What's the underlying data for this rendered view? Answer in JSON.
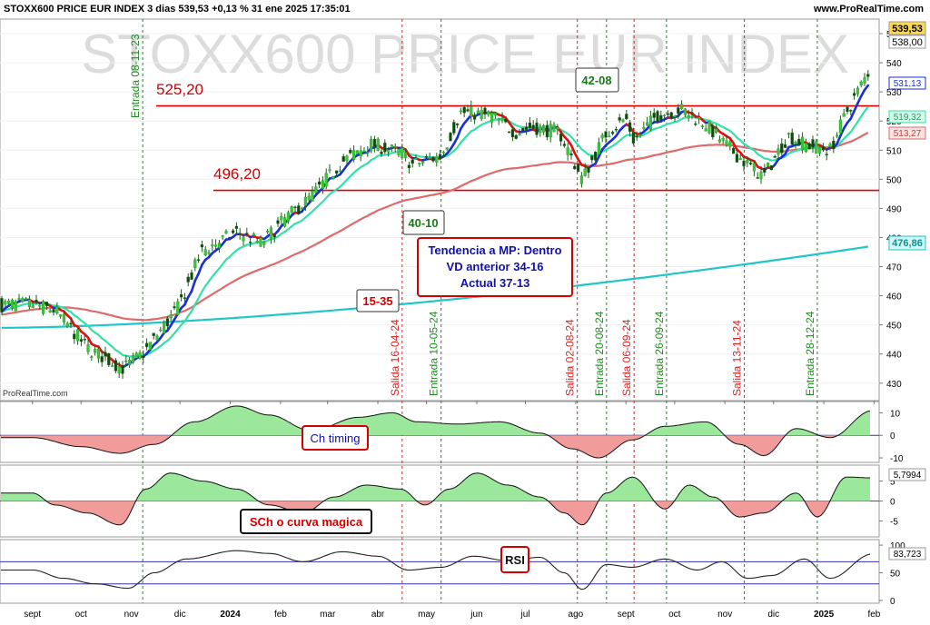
{
  "header": {
    "title": "STOXX600 PRICE EUR INDEX 3 dias 539,53 +0,13 % 31 ene 2025 17:35:01",
    "site": "www.ProRealTime.com",
    "watermark": "STOXX600 PRICE EUR INDEX",
    "source": "ProRealTime.com"
  },
  "annotations": {
    "level_high": "525,20",
    "level_low": "496,20",
    "box_1535": "15-35",
    "box_4010": "40-10",
    "box_4208": "42-08",
    "trend_line1": "Tendencia a MP: Dentro",
    "trend_line2": "VD anterior 34-16",
    "trend_line3": "Actual 37-13",
    "ch_timing": "Ch timing",
    "sch": "SCh o curva magica",
    "rsi": "RSI"
  },
  "vertical_markers": [
    {
      "date": "2023-11-08",
      "label": "Entrada 08-11-23",
      "kind": "entrada"
    },
    {
      "date": "2024-04-16",
      "label": "Salida 16-04-24",
      "kind": "salida"
    },
    {
      "date": "2024-05-10",
      "label": "Entrada 10-05-24",
      "kind": "entrada"
    },
    {
      "date": "2024-08-02",
      "label": "Salida 02-08-24",
      "kind": "salida"
    },
    {
      "date": "2024-08-20",
      "label": "Entrada 20-08-24",
      "kind": "entrada"
    },
    {
      "date": "2024-09-06",
      "label": "Salida 06-09-24",
      "kind": "salida"
    },
    {
      "date": "2024-09-26",
      "label": "Entrada 26-09-24",
      "kind": "entrada"
    },
    {
      "date": "2024-11-13",
      "label": "Salida 13-11-24",
      "kind": "salida"
    },
    {
      "date": "2024-12-28",
      "label": "Entrada 28-12-24",
      "kind": "entrada"
    }
  ],
  "price_labels": {
    "last": "539,53",
    "close": "538,00",
    "fast": "531,13",
    "mid": "519,32",
    "slow": "513,27",
    "long": "476,86",
    "sch_value": "5,7994",
    "rsi_value": "83,723"
  },
  "chart_data": [
    {
      "type": "candlestick",
      "title": "STOXX600 PRICE EUR INDEX 3 dias 539,53 +0,13 % 31 ene 2025 17:35:01",
      "x_ticks": [
        "sept",
        "oct",
        "nov",
        "dic",
        "2024",
        "feb",
        "mar",
        "abr",
        "may",
        "jun",
        "jul",
        "ago",
        "sept",
        "oct",
        "nov",
        "dic",
        "2025",
        "feb"
      ],
      "y_ticks": [
        430,
        440,
        450,
        460,
        470,
        480,
        490,
        500,
        510,
        520,
        530,
        540,
        550
      ],
      "ylim": [
        424,
        555
      ],
      "horizontal_levels": [
        525.2,
        496.2
      ],
      "price_path_dates": [
        "2023-09-01",
        "2023-09-15",
        "2023-10-05",
        "2023-10-27",
        "2023-11-08",
        "2023-11-30",
        "2023-12-14",
        "2024-01-05",
        "2024-01-20",
        "2024-02-05",
        "2024-02-20",
        "2024-03-10",
        "2024-03-28",
        "2024-04-16",
        "2024-04-22",
        "2024-05-10",
        "2024-05-22",
        "2024-06-10",
        "2024-06-25",
        "2024-07-05",
        "2024-07-22",
        "2024-08-05",
        "2024-08-20",
        "2024-09-01",
        "2024-09-06",
        "2024-09-20",
        "2024-10-05",
        "2024-10-20",
        "2024-11-01",
        "2024-11-13",
        "2024-11-25",
        "2024-12-10",
        "2024-12-20",
        "2025-01-05",
        "2025-01-15",
        "2025-01-31"
      ],
      "price_path_values": [
        457,
        455,
        442,
        435,
        440,
        456,
        475,
        482,
        478,
        487,
        494,
        506,
        512,
        509,
        505,
        508,
        523,
        522,
        516,
        518,
        516,
        500,
        516,
        521,
        513,
        522,
        524,
        519,
        512,
        506,
        501,
        515,
        512,
        510,
        523,
        539.5
      ],
      "series": [
        {
          "name": "531,13",
          "color": "#1a2fd6",
          "last": 531.13
        },
        {
          "name": "519,32",
          "color": "#33e0a8",
          "last": 519.32
        },
        {
          "name": "513,27",
          "color": "#e06a6a",
          "last": 513.27
        },
        {
          "name": "476,86",
          "color": "#1fc6c6",
          "last": 476.86
        }
      ]
    },
    {
      "type": "area",
      "ylabel": "",
      "y_ticks": [
        -10,
        0,
        10
      ],
      "ylim": [
        -12,
        15
      ],
      "dates": [
        "2023-09-01",
        "2023-10-01",
        "2023-10-25",
        "2023-11-15",
        "2023-12-10",
        "2024-01-05",
        "2024-01-25",
        "2024-02-20",
        "2024-03-20",
        "2024-04-10",
        "2024-04-25",
        "2024-05-20",
        "2024-06-15",
        "2024-07-10",
        "2024-07-30",
        "2024-08-15",
        "2024-09-05",
        "2024-09-25",
        "2024-10-20",
        "2024-11-10",
        "2024-11-25",
        "2024-12-15",
        "2025-01-05",
        "2025-01-31"
      ],
      "values": [
        -1,
        -5,
        -8,
        -4,
        6,
        13,
        9,
        2,
        8,
        10,
        6,
        5,
        6,
        1,
        -6,
        -10,
        -2,
        4,
        6,
        -4,
        -9,
        3,
        -1,
        11
      ]
    },
    {
      "type": "area",
      "y_ticks": [
        -5,
        0,
        5
      ],
      "ylim": [
        -9,
        9
      ],
      "last": 5.7994,
      "dates": [
        "2023-09-01",
        "2023-09-15",
        "2023-10-05",
        "2023-10-25",
        "2023-11-10",
        "2023-11-25",
        "2023-12-15",
        "2024-01-05",
        "2024-01-25",
        "2024-02-15",
        "2024-03-05",
        "2024-03-25",
        "2024-04-15",
        "2024-04-30",
        "2024-05-15",
        "2024-06-01",
        "2024-06-20",
        "2024-07-10",
        "2024-07-25",
        "2024-08-05",
        "2024-08-20",
        "2024-09-05",
        "2024-09-25",
        "2024-10-10",
        "2024-10-25",
        "2024-11-10",
        "2024-11-25",
        "2024-12-15",
        "2024-12-28",
        "2025-01-15",
        "2025-01-31"
      ],
      "values": [
        2,
        -1,
        -3,
        -6,
        3,
        7,
        5,
        3,
        -1,
        -3,
        1,
        4,
        3,
        -1,
        3,
        7,
        4,
        1,
        -3,
        -6,
        2,
        6,
        -2,
        4,
        1,
        -4,
        -3,
        2,
        -4,
        6,
        5.8
      ]
    },
    {
      "type": "line",
      "y_ticks": [
        0,
        50,
        100
      ],
      "ylim": [
        -5,
        110
      ],
      "last": 83.723,
      "dates": [
        "2023-09-01",
        "2023-09-20",
        "2023-10-10",
        "2023-10-30",
        "2023-11-15",
        "2023-12-05",
        "2024-01-05",
        "2024-01-25",
        "2024-02-15",
        "2024-03-10",
        "2024-04-01",
        "2024-04-20",
        "2024-05-10",
        "2024-05-30",
        "2024-06-20",
        "2024-07-10",
        "2024-07-25",
        "2024-08-05",
        "2024-08-20",
        "2024-09-05",
        "2024-09-25",
        "2024-10-15",
        "2024-10-30",
        "2024-11-15",
        "2024-11-30",
        "2024-12-20",
        "2025-01-05",
        "2025-01-31"
      ],
      "values": [
        55,
        40,
        30,
        22,
        50,
        75,
        90,
        85,
        70,
        88,
        80,
        55,
        60,
        80,
        72,
        78,
        50,
        20,
        65,
        60,
        75,
        55,
        70,
        40,
        45,
        75,
        40,
        84
      ]
    }
  ]
}
